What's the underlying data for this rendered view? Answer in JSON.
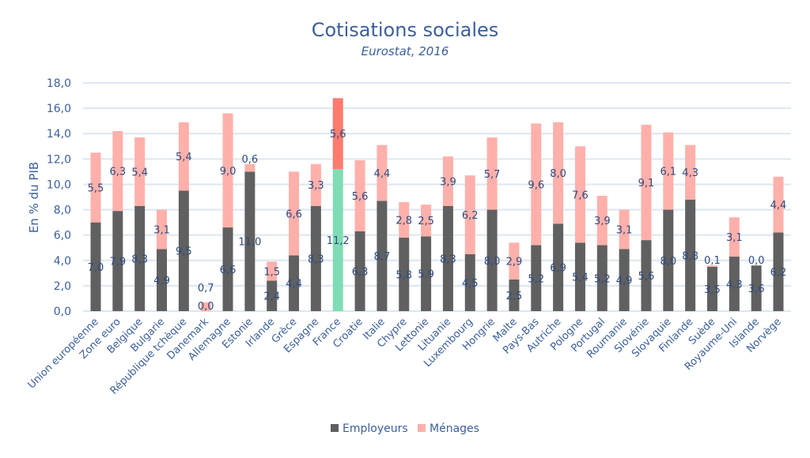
{
  "chart_data": {
    "type": "bar",
    "stacked": true,
    "title": "Cotisations sociales",
    "subtitle": "Eurostat, 2016",
    "xlabel": "",
    "ylabel": "En % du PIB",
    "ylim": [
      0,
      18
    ],
    "yticks": [
      "0,0",
      "2,0",
      "4,0",
      "6,0",
      "8,0",
      "10,0",
      "12,0",
      "14,0",
      "16,0",
      "18,0"
    ],
    "grid": true,
    "legend_position": "bottom",
    "categories": [
      "Union européenne",
      "Zone euro",
      "Belgique",
      "Bulgarie",
      "République tchèque",
      "Danemark",
      "Allemagne",
      "Estonie",
      "Irlande",
      "Grèce",
      "Espagne",
      "France",
      "Croatie",
      "Italie",
      "Chypre",
      "Lettonie",
      "Lituanie",
      "Luxembourg",
      "Hongrie",
      "Malte",
      "Pays-Bas",
      "Autriche",
      "Pologne",
      "Portugal",
      "Roumanie",
      "Slovénie",
      "Slovaquie",
      "Finlande",
      "Suède",
      "Royaume-Uni",
      "Islande",
      "Norvège"
    ],
    "series": [
      {
        "name": "Employeurs",
        "color": "#606060",
        "highlight_color": "#7fdcb5",
        "values": [
          7.0,
          7.9,
          8.3,
          4.9,
          9.5,
          0.0,
          6.6,
          11.0,
          2.4,
          4.4,
          8.3,
          11.2,
          6.3,
          8.7,
          5.8,
          5.9,
          8.3,
          4.5,
          8.0,
          2.5,
          5.2,
          6.9,
          5.4,
          5.2,
          4.9,
          5.6,
          8.0,
          8.8,
          3.5,
          4.3,
          3.6,
          6.2
        ]
      },
      {
        "name": "Ménages",
        "color": "#ffb0aa",
        "highlight_color": "#ff7b6e",
        "values": [
          5.5,
          6.3,
          5.4,
          3.1,
          5.4,
          0.7,
          9.0,
          0.6,
          1.5,
          6.6,
          3.3,
          5.6,
          5.6,
          4.4,
          2.8,
          2.5,
          3.9,
          6.2,
          5.7,
          2.9,
          9.6,
          8.0,
          7.6,
          3.9,
          3.1,
          9.1,
          6.1,
          4.3,
          0.1,
          3.1,
          0.0,
          4.4
        ]
      }
    ],
    "highlighted_category": "France",
    "label_color": "#2e4a7f",
    "title_color": "#3b5f9c"
  }
}
